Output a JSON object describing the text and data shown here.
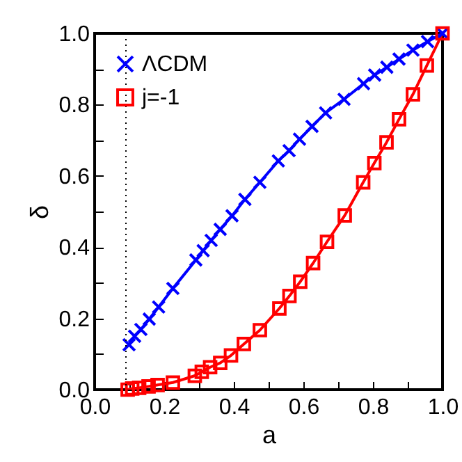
{
  "chart_data": {
    "type": "line",
    "xlabel": "a",
    "ylabel": "δ",
    "xlim": [
      0,
      1
    ],
    "ylim": [
      0,
      1
    ],
    "xticks": [
      {
        "value": 0,
        "label": "0.0"
      },
      {
        "value": 0.1,
        "label": null
      },
      {
        "value": 0.2,
        "label": "0.2"
      },
      {
        "value": 0.3,
        "label": null
      },
      {
        "value": 0.4,
        "label": "0.4"
      },
      {
        "value": 0.5,
        "label": null
      },
      {
        "value": 0.6,
        "label": "0.6"
      },
      {
        "value": 0.7,
        "label": null
      },
      {
        "value": 0.8,
        "label": "0.8"
      },
      {
        "value": 0.9,
        "label": null
      },
      {
        "value": 1,
        "label": "1.0"
      }
    ],
    "yticks": [
      {
        "value": 0,
        "label": "0.0"
      },
      {
        "value": 0.1,
        "label": null
      },
      {
        "value": 0.2,
        "label": "0.2"
      },
      {
        "value": 0.3,
        "label": null
      },
      {
        "value": 0.4,
        "label": "0.4"
      },
      {
        "value": 0.5,
        "label": null
      },
      {
        "value": 0.6,
        "label": "0.6"
      },
      {
        "value": 0.7,
        "label": null
      },
      {
        "value": 0.8,
        "label": "0.8"
      },
      {
        "value": 0.9,
        "label": null
      },
      {
        "value": 1,
        "label": "1.0"
      }
    ],
    "grid": false,
    "legend": "top left",
    "ref_lines": [
      {
        "axis": "x",
        "value": 0.09,
        "color": "#000000",
        "line_style": "dotted"
      }
    ],
    "series": [
      {
        "name": "ΛCDM",
        "color": "#0000ff",
        "marker": "cross",
        "x": [
          0.099,
          0.115,
          0.133,
          0.157,
          0.184,
          0.225,
          0.291,
          0.312,
          0.335,
          0.361,
          0.395,
          0.432,
          0.475,
          0.528,
          0.559,
          0.589,
          0.625,
          0.664,
          0.717,
          0.773,
          0.805,
          0.84,
          0.875,
          0.915,
          0.957,
          1.0
        ],
        "values": [
          0.126,
          0.15,
          0.169,
          0.198,
          0.232,
          0.284,
          0.364,
          0.39,
          0.419,
          0.45,
          0.488,
          0.534,
          0.582,
          0.642,
          0.671,
          0.703,
          0.739,
          0.777,
          0.815,
          0.859,
          0.883,
          0.905,
          0.928,
          0.953,
          0.977,
          1.0
        ]
      },
      {
        "name": "j=-1",
        "color": "#ff0000",
        "marker": "square",
        "x": [
          0.095,
          0.108,
          0.128,
          0.155,
          0.181,
          0.225,
          0.288,
          0.308,
          0.332,
          0.361,
          0.392,
          0.429,
          0.475,
          0.531,
          0.56,
          0.591,
          0.628,
          0.668,
          0.719,
          0.772,
          0.804,
          0.839,
          0.875,
          0.915,
          0.955,
          1.0
        ],
        "values": [
          0.0,
          0.003,
          0.005,
          0.009,
          0.013,
          0.02,
          0.039,
          0.05,
          0.063,
          0.075,
          0.096,
          0.128,
          0.167,
          0.228,
          0.263,
          0.303,
          0.355,
          0.415,
          0.489,
          0.582,
          0.636,
          0.694,
          0.759,
          0.829,
          0.91,
          1.0
        ]
      }
    ]
  }
}
